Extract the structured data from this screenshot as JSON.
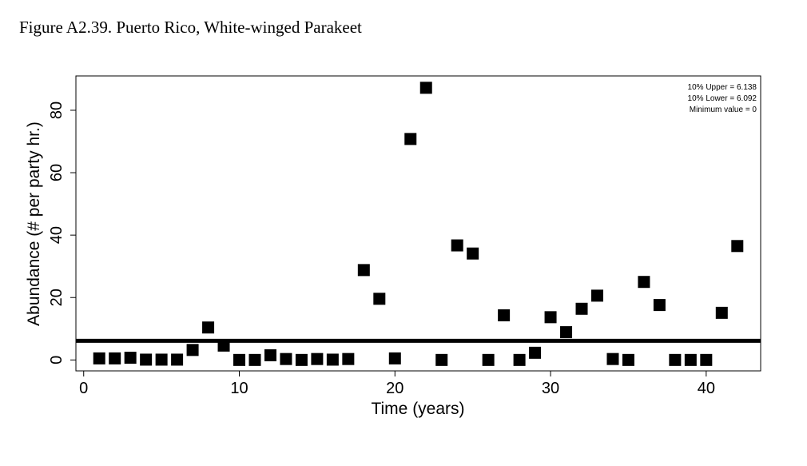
{
  "figure": {
    "title": "Figure A2.39. Puerto Rico, White-winged Parakeet"
  },
  "chart_data": {
    "type": "scatter",
    "title": "Figure A2.39. Puerto Rico, White-winged Parakeet",
    "xlabel": "Time (years)",
    "ylabel": "Abundance (# per party hr.)",
    "xlim": [
      -0.5,
      43.5
    ],
    "ylim": [
      -3.5,
      91
    ],
    "xticks": [
      0,
      10,
      20,
      30,
      40
    ],
    "yticks": [
      0,
      20,
      40,
      60,
      80
    ],
    "marker_color": "#000000",
    "reference_line": {
      "y": 6.138,
      "color": "#000000"
    },
    "legend": {
      "placement": "top-right",
      "lines": [
        "10% Upper =  6.138",
        "10% Lower =  6.092",
        "Minimum value =  0"
      ]
    },
    "x": [
      1,
      2,
      3,
      4,
      5,
      6,
      7,
      8,
      9,
      10,
      11,
      12,
      13,
      14,
      15,
      16,
      17,
      18,
      19,
      20,
      21,
      22,
      23,
      24,
      25,
      26,
      27,
      28,
      29,
      30,
      31,
      32,
      33,
      34,
      35,
      36,
      37,
      38,
      39,
      40,
      41,
      42
    ],
    "y": [
      0.5,
      0.5,
      0.7,
      0.1,
      0.1,
      0.1,
      3.2,
      10.4,
      4.6,
      0,
      0,
      1.5,
      0.3,
      0,
      0.3,
      0.1,
      0.3,
      28.8,
      19.6,
      0.5,
      70.8,
      87.2,
      0,
      36.7,
      34.1,
      0,
      14.3,
      0,
      2.3,
      13.7,
      8.9,
      16.4,
      20.6,
      0.3,
      0,
      25,
      17.6,
      0,
      0,
      0,
      15.1,
      36.5
    ]
  }
}
